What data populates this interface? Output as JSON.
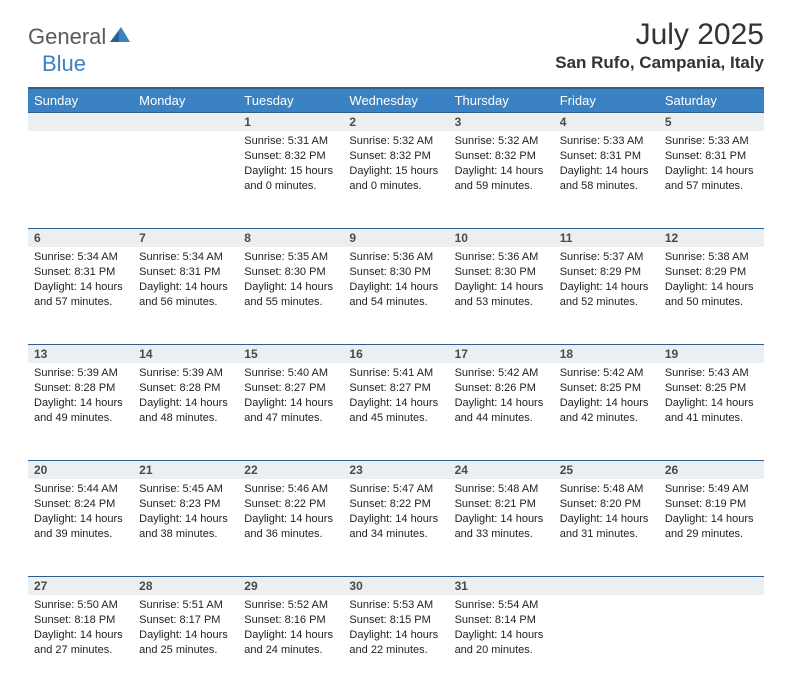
{
  "brand": {
    "part1": "General",
    "part2": "Blue"
  },
  "title": "July 2025",
  "location": "San Rufo, Campania, Italy",
  "dow": [
    "Sunday",
    "Monday",
    "Tuesday",
    "Wednesday",
    "Thursday",
    "Friday",
    "Saturday"
  ],
  "colors": {
    "header_bg": "#3b82c4",
    "header_border": "#2e5f8a",
    "daynum_bg": "#eceff1",
    "text": "#222222",
    "logo_gray": "#5a5a5a",
    "logo_blue": "#3b82c4"
  },
  "first_weekday": 2,
  "days": [
    {
      "n": 1,
      "sunrise": "5:31 AM",
      "sunset": "8:32 PM",
      "daylight": "15 hours and 0 minutes."
    },
    {
      "n": 2,
      "sunrise": "5:32 AM",
      "sunset": "8:32 PM",
      "daylight": "15 hours and 0 minutes."
    },
    {
      "n": 3,
      "sunrise": "5:32 AM",
      "sunset": "8:32 PM",
      "daylight": "14 hours and 59 minutes."
    },
    {
      "n": 4,
      "sunrise": "5:33 AM",
      "sunset": "8:31 PM",
      "daylight": "14 hours and 58 minutes."
    },
    {
      "n": 5,
      "sunrise": "5:33 AM",
      "sunset": "8:31 PM",
      "daylight": "14 hours and 57 minutes."
    },
    {
      "n": 6,
      "sunrise": "5:34 AM",
      "sunset": "8:31 PM",
      "daylight": "14 hours and 57 minutes."
    },
    {
      "n": 7,
      "sunrise": "5:34 AM",
      "sunset": "8:31 PM",
      "daylight": "14 hours and 56 minutes."
    },
    {
      "n": 8,
      "sunrise": "5:35 AM",
      "sunset": "8:30 PM",
      "daylight": "14 hours and 55 minutes."
    },
    {
      "n": 9,
      "sunrise": "5:36 AM",
      "sunset": "8:30 PM",
      "daylight": "14 hours and 54 minutes."
    },
    {
      "n": 10,
      "sunrise": "5:36 AM",
      "sunset": "8:30 PM",
      "daylight": "14 hours and 53 minutes."
    },
    {
      "n": 11,
      "sunrise": "5:37 AM",
      "sunset": "8:29 PM",
      "daylight": "14 hours and 52 minutes."
    },
    {
      "n": 12,
      "sunrise": "5:38 AM",
      "sunset": "8:29 PM",
      "daylight": "14 hours and 50 minutes."
    },
    {
      "n": 13,
      "sunrise": "5:39 AM",
      "sunset": "8:28 PM",
      "daylight": "14 hours and 49 minutes."
    },
    {
      "n": 14,
      "sunrise": "5:39 AM",
      "sunset": "8:28 PM",
      "daylight": "14 hours and 48 minutes."
    },
    {
      "n": 15,
      "sunrise": "5:40 AM",
      "sunset": "8:27 PM",
      "daylight": "14 hours and 47 minutes."
    },
    {
      "n": 16,
      "sunrise": "5:41 AM",
      "sunset": "8:27 PM",
      "daylight": "14 hours and 45 minutes."
    },
    {
      "n": 17,
      "sunrise": "5:42 AM",
      "sunset": "8:26 PM",
      "daylight": "14 hours and 44 minutes."
    },
    {
      "n": 18,
      "sunrise": "5:42 AM",
      "sunset": "8:25 PM",
      "daylight": "14 hours and 42 minutes."
    },
    {
      "n": 19,
      "sunrise": "5:43 AM",
      "sunset": "8:25 PM",
      "daylight": "14 hours and 41 minutes."
    },
    {
      "n": 20,
      "sunrise": "5:44 AM",
      "sunset": "8:24 PM",
      "daylight": "14 hours and 39 minutes."
    },
    {
      "n": 21,
      "sunrise": "5:45 AM",
      "sunset": "8:23 PM",
      "daylight": "14 hours and 38 minutes."
    },
    {
      "n": 22,
      "sunrise": "5:46 AM",
      "sunset": "8:22 PM",
      "daylight": "14 hours and 36 minutes."
    },
    {
      "n": 23,
      "sunrise": "5:47 AM",
      "sunset": "8:22 PM",
      "daylight": "14 hours and 34 minutes."
    },
    {
      "n": 24,
      "sunrise": "5:48 AM",
      "sunset": "8:21 PM",
      "daylight": "14 hours and 33 minutes."
    },
    {
      "n": 25,
      "sunrise": "5:48 AM",
      "sunset": "8:20 PM",
      "daylight": "14 hours and 31 minutes."
    },
    {
      "n": 26,
      "sunrise": "5:49 AM",
      "sunset": "8:19 PM",
      "daylight": "14 hours and 29 minutes."
    },
    {
      "n": 27,
      "sunrise": "5:50 AM",
      "sunset": "8:18 PM",
      "daylight": "14 hours and 27 minutes."
    },
    {
      "n": 28,
      "sunrise": "5:51 AM",
      "sunset": "8:17 PM",
      "daylight": "14 hours and 25 minutes."
    },
    {
      "n": 29,
      "sunrise": "5:52 AM",
      "sunset": "8:16 PM",
      "daylight": "14 hours and 24 minutes."
    },
    {
      "n": 30,
      "sunrise": "5:53 AM",
      "sunset": "8:15 PM",
      "daylight": "14 hours and 22 minutes."
    },
    {
      "n": 31,
      "sunrise": "5:54 AM",
      "sunset": "8:14 PM",
      "daylight": "14 hours and 20 minutes."
    }
  ],
  "labels": {
    "sunrise": "Sunrise: ",
    "sunset": "Sunset: ",
    "daylight": "Daylight: "
  }
}
